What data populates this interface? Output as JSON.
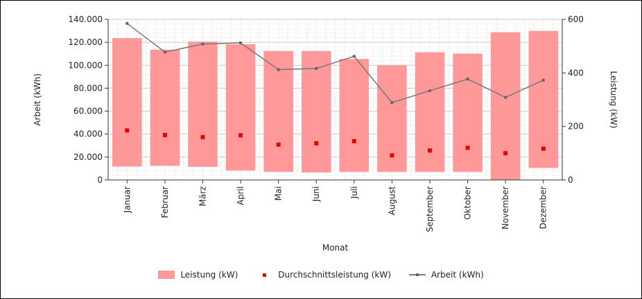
{
  "chart_data": {
    "type": "bar",
    "categories": [
      "Januar",
      "Februar",
      "März",
      "April",
      "Mai",
      "Juni",
      "Juli",
      "August",
      "September",
      "Oktober",
      "November",
      "Dezember"
    ],
    "xlabel": "Monat",
    "ylabel_left": "Arbeit (kWh)",
    "ylabel_right": "Leistung (kW)",
    "ylim_left": [
      0,
      140000
    ],
    "ylim_right": [
      0,
      600
    ],
    "yticks_left": [
      "140.000",
      "120.000",
      "100.000",
      "80.000",
      "60.000",
      "40.000",
      "20.000",
      "0"
    ],
    "yticks_right": [
      "600",
      "400",
      "200",
      "0"
    ],
    "grid": true,
    "legend_position": "bottom",
    "series": [
      {
        "name": "Leistung (kW)",
        "type": "range-bar",
        "axis": "right",
        "color": "#ff9999",
        "low": [
          50,
          53,
          49,
          35,
          30,
          28,
          30,
          30,
          30,
          30,
          0,
          45
        ],
        "high": [
          530,
          487,
          517,
          507,
          482,
          482,
          452,
          428,
          477,
          472,
          552,
          557
        ]
      },
      {
        "name": "Durchschnittsleistung (kW)",
        "type": "scatter",
        "axis": "right",
        "color": "#e60000",
        "values": [
          185,
          168,
          160,
          167,
          132,
          137,
          145,
          92,
          110,
          120,
          100,
          117
        ]
      },
      {
        "name": "Arbeit (kWh)",
        "type": "line",
        "axis": "left",
        "color": "#777777",
        "values": [
          136500,
          111500,
          118500,
          119500,
          96200,
          97200,
          107800,
          67500,
          77800,
          88000,
          72000,
          87000
        ]
      }
    ]
  }
}
